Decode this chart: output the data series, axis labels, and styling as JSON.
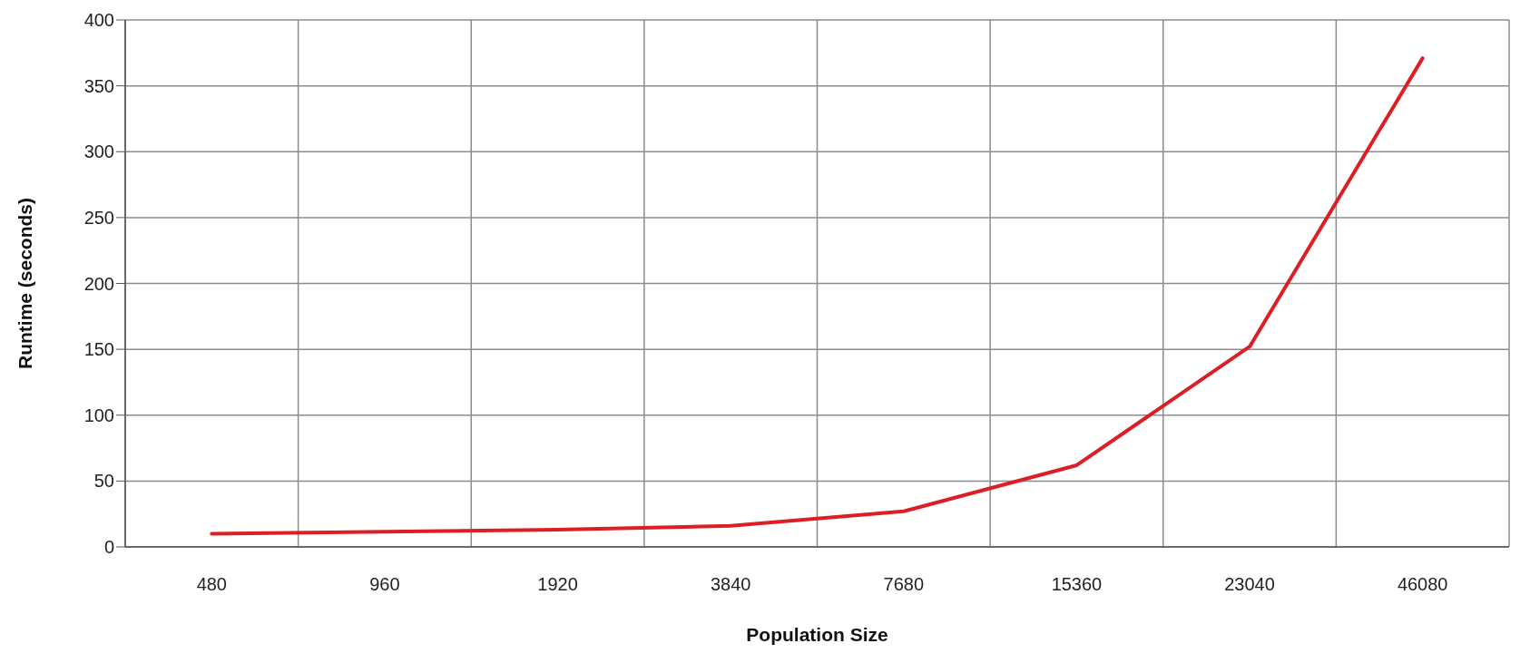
{
  "chart_data": {
    "type": "line",
    "xlabel": "Population Size",
    "ylabel": "Runtime (seconds)",
    "categories": [
      "480",
      "960",
      "1920",
      "3840",
      "7680",
      "15360",
      "23040",
      "46080"
    ],
    "series": [
      {
        "color": "#dc1f26",
        "values": [
          10,
          11.5,
          13,
          16,
          27,
          62,
          152,
          371
        ]
      }
    ],
    "ylim": [
      0,
      400
    ],
    "yticks": [
      0,
      50,
      100,
      150,
      200,
      250,
      300,
      350,
      400
    ],
    "grid": true,
    "marker": "none",
    "line_style": "solid",
    "legend": false
  }
}
